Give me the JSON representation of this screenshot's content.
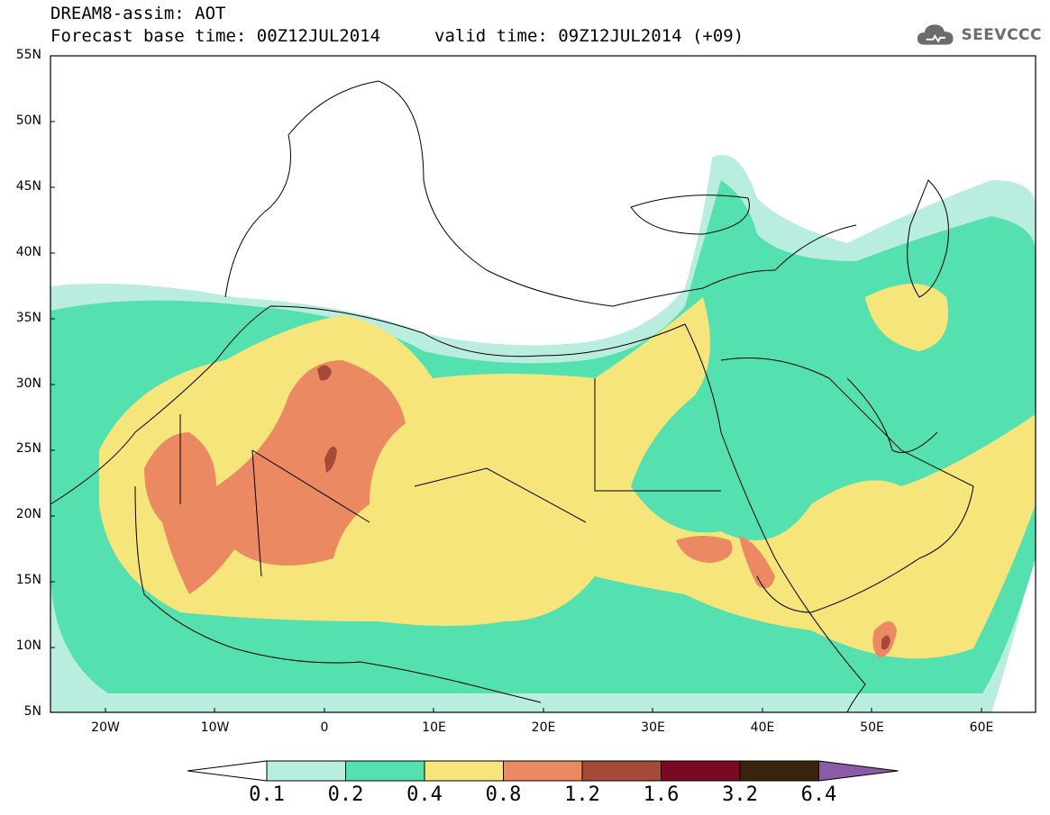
{
  "header": {
    "line1": "DREAM8-assim: AOT",
    "line2": "Forecast base time: 00Z12JUL2014",
    "valid": "valid time: 09Z12JUL2014 (+09)"
  },
  "logo": {
    "text": "SEEVCCC",
    "icon": "cloud-icon"
  },
  "map": {
    "lat_labels": [
      "55N",
      "50N",
      "45N",
      "40N",
      "35N",
      "30N",
      "25N",
      "20N",
      "15N",
      "10N",
      "5N"
    ],
    "lon_labels": [
      "20W",
      "10W",
      "0",
      "10E",
      "20E",
      "30E",
      "40E",
      "50E",
      "60E"
    ],
    "extent": {
      "lon_min": -25,
      "lon_max": 65,
      "lat_min": 5,
      "lat_max": 55
    }
  },
  "colorbar": {
    "labels": [
      "0.1",
      "0.2",
      "0.4",
      "0.8",
      "1.2",
      "1.6",
      "3.2",
      "6.4"
    ],
    "colors": [
      "#ffffff",
      "#b8ede0",
      "#55e0b0",
      "#f5e57a",
      "#eb8a62",
      "#a54a38",
      "#7a0a22",
      "#3a2410",
      "#8a5ca8"
    ]
  }
}
